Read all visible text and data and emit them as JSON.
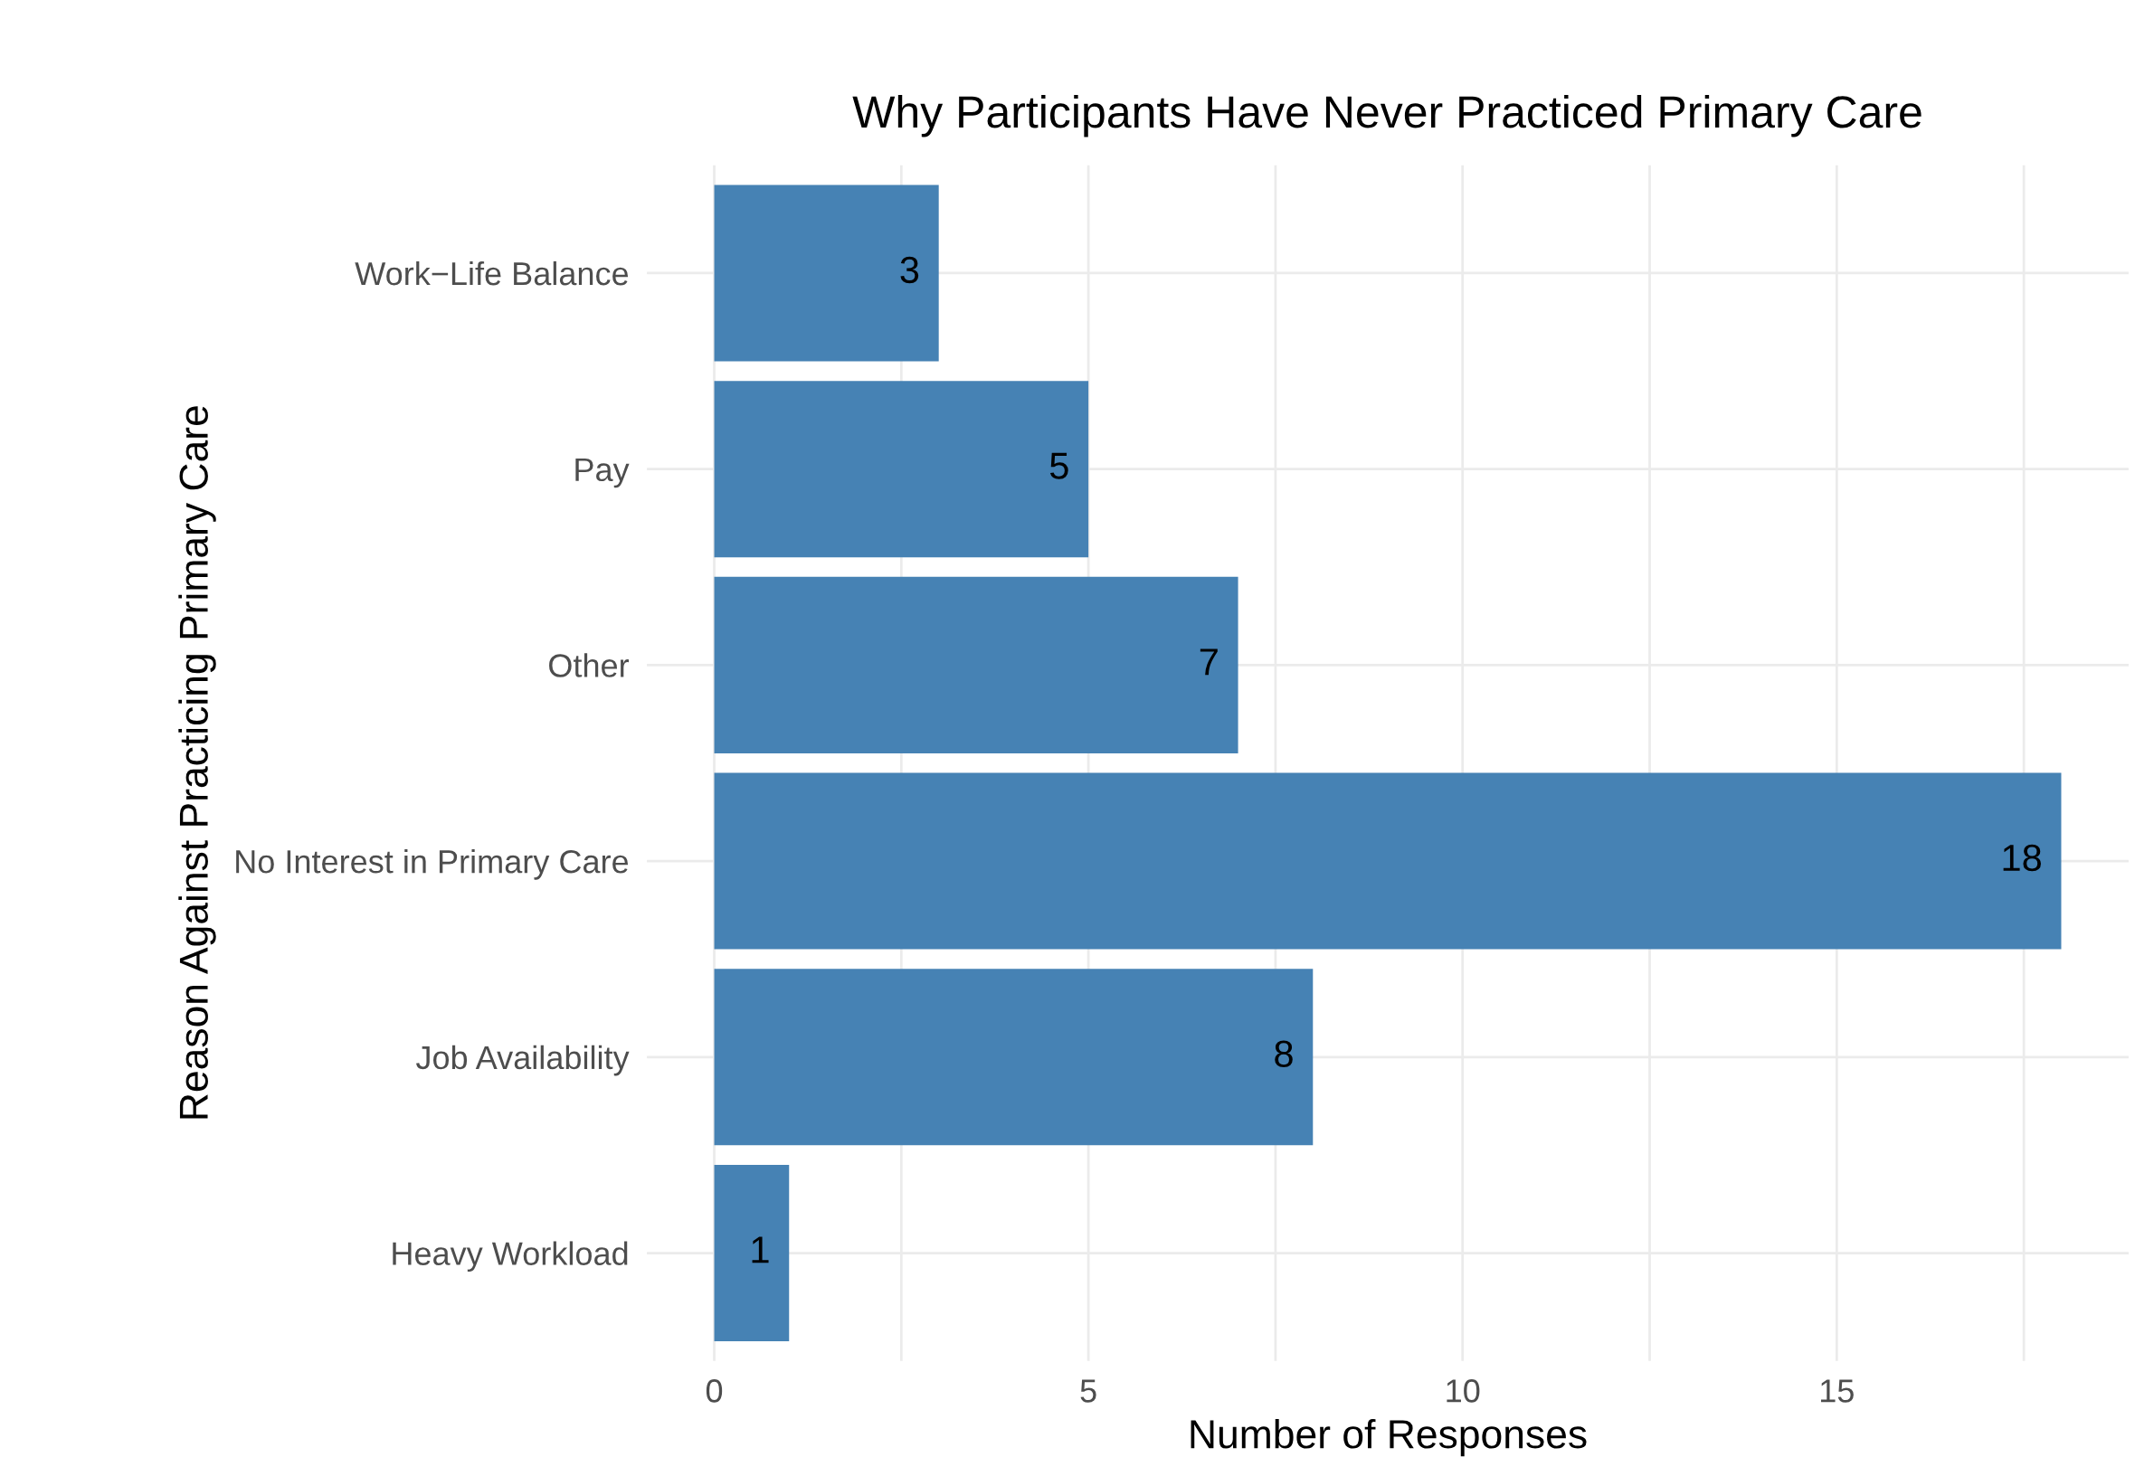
{
  "chart_data": {
    "type": "bar",
    "orientation": "horizontal",
    "title": "Why Participants Have Never Practiced Primary Care",
    "xlabel": "Number of Responses",
    "ylabel": "Reason Against Practicing Primary Care",
    "categories": [
      "Work−Life Balance",
      "Pay",
      "Other",
      "No Interest in Primary Care",
      "Job Availability",
      "Heavy Workload"
    ],
    "values": [
      3,
      5,
      7,
      18,
      8,
      1
    ],
    "color": "#4682b4",
    "data_labels": true,
    "xlim": [
      -0.9,
      18.9
    ],
    "xticks": [
      0,
      {
        "value": 2.5,
        "label": null
      },
      5,
      {
        "value": 7.5,
        "label": null
      },
      10,
      {
        "value": 12.5,
        "label": null
      },
      15,
      {
        "value": 17.5,
        "label": null
      }
    ],
    "grid": true
  }
}
